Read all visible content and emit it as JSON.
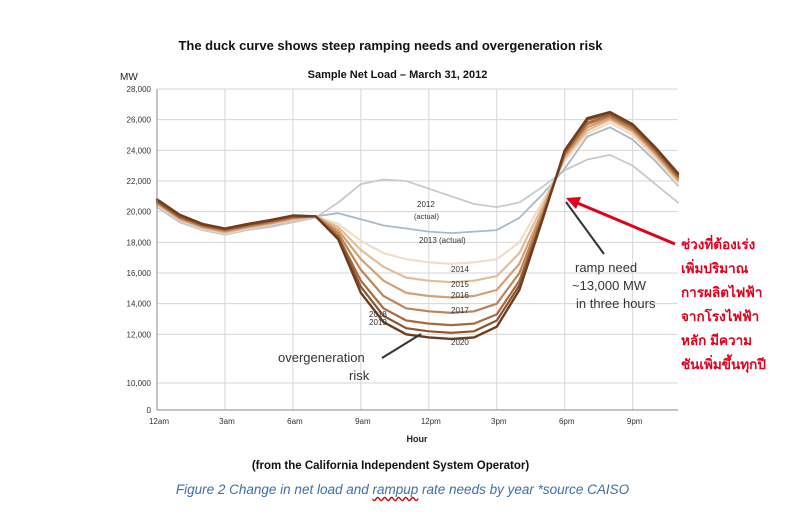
{
  "header": {
    "title": "The duck curve shows steep ramping needs and overgeneration risk",
    "subtitle": "Sample Net Load – March 31, 2012"
  },
  "footer": {
    "source": "(from the California Independent System Operator)",
    "caption_pre": "Figure 2 Change in net load and ",
    "caption_squiggle": "rampup",
    "caption_post": " rate needs by year *source CAISO"
  },
  "annotations": {
    "ramp_need": [
      "ramp need",
      "~13,000 MW",
      "in three hours"
    ],
    "overgeneration": [
      "overgeneration",
      "risk"
    ],
    "thai_note": [
      "ช่วงที่ต้องเร่ง",
      "เพิ่มปริมาณ",
      "การผลิตไฟฟ้า",
      "จากโรงไฟฟ้า",
      "หลัก มีความ",
      "ชันเพิ่มขึ้นทุกปี"
    ],
    "thai_color": "#e0001b"
  },
  "chart_data": {
    "type": "line",
    "ylabel": "MW",
    "xlabel": "Hour",
    "ylim": [
      0,
      28000
    ],
    "yticks": [
      0,
      10000,
      12000,
      14000,
      16000,
      18000,
      20000,
      22000,
      24000,
      26000,
      28000
    ],
    "ytick_labels": [
      "0",
      "10,000",
      "12,000",
      "14,000",
      "16,000",
      "18,000",
      "20,000",
      "22,000",
      "24,000",
      "26,000",
      "28,000"
    ],
    "xlim": [
      0,
      23
    ],
    "xticks": [
      0,
      3,
      6,
      9,
      12,
      15,
      18,
      21
    ],
    "xtick_labels": [
      "12am",
      "3am",
      "6am",
      "9am",
      "12pm",
      "3pm",
      "6pm",
      "9pm"
    ],
    "grid": true,
    "x": [
      0,
      1,
      2,
      3,
      4,
      5,
      6,
      7,
      8,
      9,
      10,
      11,
      12,
      13,
      14,
      15,
      16,
      17,
      18,
      19,
      20,
      21,
      22,
      23
    ],
    "series": [
      {
        "name": "2012 (actual)",
        "color": "#c9c9c9",
        "width": 1.8,
        "values": [
          20300,
          19300,
          18800,
          18500,
          18800,
          19000,
          19300,
          19600,
          20600,
          21800,
          22100,
          22000,
          21500,
          21000,
          20500,
          20300,
          20600,
          21600,
          22700,
          23400,
          23700,
          23000,
          21800,
          20600
        ]
      },
      {
        "name": "2013 (actual)",
        "color": "#a9b9c9",
        "width": 1.8,
        "values": [
          20400,
          19400,
          18900,
          18600,
          18900,
          19100,
          19400,
          19700,
          19900,
          19500,
          19100,
          18900,
          18700,
          18600,
          18700,
          18800,
          19600,
          21100,
          22800,
          24900,
          25500,
          24700,
          23300,
          21700
        ]
      },
      {
        "name": "2014",
        "color": "#f0dcc8",
        "width": 2.2,
        "values": [
          20450,
          19450,
          18900,
          18600,
          18900,
          19150,
          19450,
          19700,
          19200,
          18100,
          17300,
          16900,
          16700,
          16600,
          16700,
          16900,
          18000,
          20600,
          23300,
          25100,
          25800,
          25000,
          23500,
          21800
        ]
      },
      {
        "name": "2015",
        "color": "#e2bd98",
        "width": 2.2,
        "values": [
          20500,
          19500,
          18950,
          18650,
          18950,
          19200,
          19500,
          19700,
          19000,
          17500,
          16400,
          15700,
          15500,
          15400,
          15500,
          15800,
          17300,
          20300,
          23500,
          25300,
          26000,
          25200,
          23700,
          22000
        ]
      },
      {
        "name": "2016",
        "color": "#d2a176",
        "width": 2.2,
        "values": [
          20550,
          19550,
          19000,
          18700,
          19000,
          19250,
          19550,
          19700,
          18800,
          16900,
          15500,
          14700,
          14500,
          14400,
          14500,
          14900,
          16600,
          20000,
          23600,
          25500,
          26100,
          25300,
          23800,
          22100
        ]
      },
      {
        "name": "2017",
        "color": "#bd8457",
        "width": 2.2,
        "values": [
          20600,
          19600,
          19050,
          18750,
          19050,
          19300,
          19600,
          19700,
          18600,
          16200,
          14500,
          13700,
          13500,
          13400,
          13500,
          14000,
          16000,
          19800,
          23700,
          25700,
          26200,
          25400,
          23900,
          22200
        ]
      },
      {
        "name": "2018",
        "color": "#a76a3f",
        "width": 2.2,
        "values": [
          20650,
          19650,
          19100,
          18800,
          19100,
          19350,
          19650,
          19700,
          18400,
          15500,
          13700,
          12900,
          12700,
          12600,
          12700,
          13300,
          15500,
          19600,
          23800,
          25800,
          26300,
          25500,
          24000,
          22300
        ]
      },
      {
        "name": "2019",
        "color": "#8c5430",
        "width": 2.2,
        "values": [
          20700,
          19700,
          19150,
          18850,
          19150,
          19400,
          19700,
          19700,
          18300,
          15100,
          13200,
          12400,
          12200,
          12100,
          12200,
          12900,
          15200,
          19500,
          23900,
          26000,
          26400,
          25600,
          24100,
          22400
        ]
      },
      {
        "name": "2020",
        "color": "#6b3e20",
        "width": 2.4,
        "values": [
          20800,
          19800,
          19200,
          18900,
          19200,
          19450,
          19750,
          19700,
          18200,
          14700,
          12800,
          12000,
          11800,
          11700,
          11800,
          12500,
          14900,
          19400,
          24000,
          26100,
          26500,
          25700,
          24200,
          22500
        ]
      }
    ]
  }
}
